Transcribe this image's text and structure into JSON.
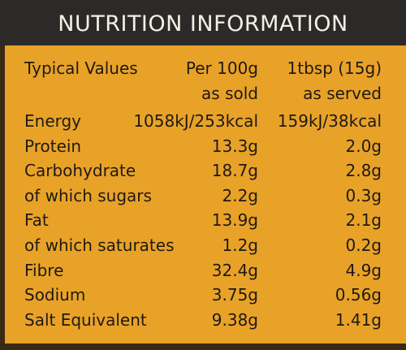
{
  "title": "NUTRITION INFORMATION",
  "table": {
    "header": {
      "label": "Typical Values",
      "columns": [
        {
          "name": "Per 100g",
          "sub": "as sold"
        },
        {
          "name": "1tbsp (15g)",
          "sub": "as served"
        }
      ]
    },
    "rows": [
      [
        "Energy",
        "1058kJ/253kcal",
        "159kJ/38kcal"
      ],
      [
        "Protein",
        "13.3g",
        "2.0g"
      ],
      [
        "Carbohydrate",
        "18.7g",
        "2.8g"
      ],
      [
        "of which sugars",
        "2.2g",
        "0.3g"
      ],
      [
        "Fat",
        "13.9g",
        "2.1g"
      ],
      [
        "of which saturates",
        "1.2g",
        "0.2g"
      ],
      [
        "Fibre",
        "32.4g",
        "4.9g"
      ],
      [
        "Sodium",
        "3.75g",
        "0.56g"
      ],
      [
        "Salt Equivalent",
        "9.38g",
        "1.41g"
      ]
    ]
  }
}
